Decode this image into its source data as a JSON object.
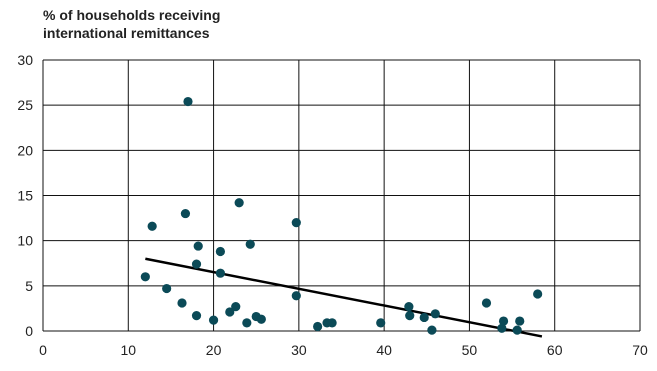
{
  "chart_data": {
    "type": "scatter",
    "title": "",
    "ylabel_lines": [
      "% of households receiving",
      "international remittances"
    ],
    "xlabel": "",
    "xlim": [
      0,
      70
    ],
    "ylim": [
      0,
      30
    ],
    "x_ticks": [
      0,
      10,
      20,
      30,
      40,
      50,
      60,
      70
    ],
    "y_ticks": [
      0,
      5,
      10,
      15,
      20,
      25,
      30
    ],
    "grid": true,
    "colors": {
      "points": "#0b4a57",
      "trendline": "#000000",
      "grid": "#111111"
    },
    "points": [
      {
        "x": 12,
        "y": 6
      },
      {
        "x": 12.8,
        "y": 11.6
      },
      {
        "x": 14.5,
        "y": 4.7
      },
      {
        "x": 16.3,
        "y": 3.1
      },
      {
        "x": 16.7,
        "y": 13
      },
      {
        "x": 17,
        "y": 25.4
      },
      {
        "x": 18,
        "y": 7.4
      },
      {
        "x": 18.2,
        "y": 9.4
      },
      {
        "x": 18,
        "y": 1.7
      },
      {
        "x": 20,
        "y": 1.2
      },
      {
        "x": 20.8,
        "y": 8.8
      },
      {
        "x": 20.8,
        "y": 6.4
      },
      {
        "x": 21.9,
        "y": 2.1
      },
      {
        "x": 22.6,
        "y": 2.7
      },
      {
        "x": 23,
        "y": 14.2
      },
      {
        "x": 23.9,
        "y": 0.9
      },
      {
        "x": 24.3,
        "y": 9.6
      },
      {
        "x": 25,
        "y": 1.6
      },
      {
        "x": 25.6,
        "y": 1.3
      },
      {
        "x": 29.7,
        "y": 12
      },
      {
        "x": 29.7,
        "y": 3.9
      },
      {
        "x": 32.2,
        "y": 0.5
      },
      {
        "x": 33.3,
        "y": 0.9
      },
      {
        "x": 33.9,
        "y": 0.9
      },
      {
        "x": 39.6,
        "y": 0.9
      },
      {
        "x": 42.9,
        "y": 2.7
      },
      {
        "x": 43,
        "y": 1.7
      },
      {
        "x": 44.7,
        "y": 1.5
      },
      {
        "x": 45.6,
        "y": 0.1
      },
      {
        "x": 46,
        "y": 1.9
      },
      {
        "x": 52,
        "y": 3.1
      },
      {
        "x": 53.8,
        "y": 0.3
      },
      {
        "x": 54,
        "y": 1.1
      },
      {
        "x": 55.6,
        "y": 0.1
      },
      {
        "x": 55.9,
        "y": 1.1
      },
      {
        "x": 58,
        "y": 4.1
      }
    ],
    "trendline": {
      "x": [
        12,
        58.5
      ],
      "y": [
        8,
        -0.6
      ]
    }
  }
}
